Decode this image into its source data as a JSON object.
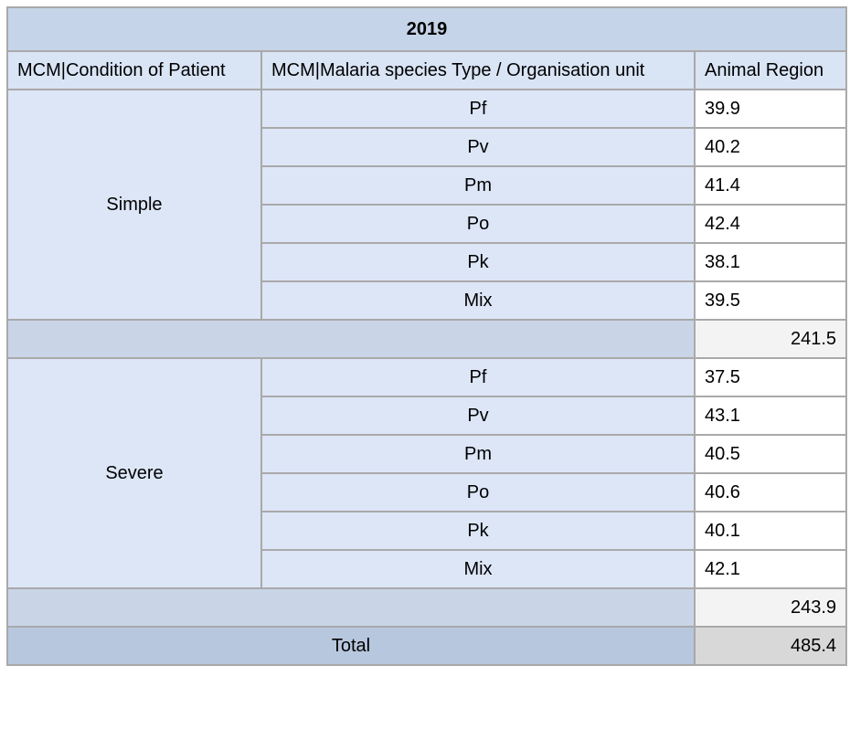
{
  "table": {
    "title": "2019",
    "headers": {
      "condition": "MCM|Condition of Patient",
      "species": "MCM|Malaria species Type / Organisation unit",
      "region": "Animal Region"
    },
    "groups": [
      {
        "condition": "Simple",
        "rows": [
          {
            "species": "Pf",
            "value": "39.9"
          },
          {
            "species": "Pv",
            "value": "40.2"
          },
          {
            "species": "Pm",
            "value": "41.4"
          },
          {
            "species": "Po",
            "value": "42.4"
          },
          {
            "species": "Pk",
            "value": "38.1"
          },
          {
            "species": "Mix",
            "value": "39.5"
          }
        ],
        "subtotal": "241.5"
      },
      {
        "condition": "Severe",
        "rows": [
          {
            "species": "Pf",
            "value": "37.5"
          },
          {
            "species": "Pv",
            "value": "43.1"
          },
          {
            "species": "Pm",
            "value": "40.5"
          },
          {
            "species": "Po",
            "value": "40.6"
          },
          {
            "species": "Pk",
            "value": "40.1"
          },
          {
            "species": "Mix",
            "value": "42.1"
          }
        ],
        "subtotal": "243.9"
      }
    ],
    "total": {
      "label": "Total",
      "value": "485.4"
    }
  }
}
